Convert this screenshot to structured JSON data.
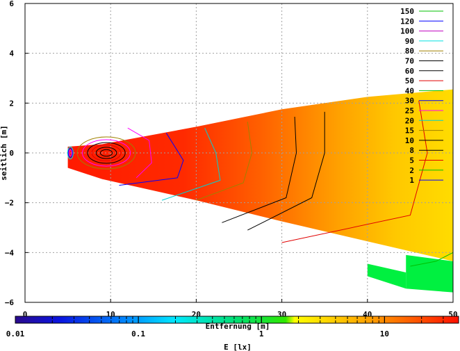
{
  "chart_data": {
    "type": "heatmap",
    "title": "",
    "xlabel": "Entfernung [m]",
    "ylabel": "seitlich [m]",
    "colorbar_label": "E [lx]",
    "xlim": [
      0,
      50
    ],
    "ylim": [
      -6,
      6
    ],
    "x_ticks": [
      0,
      10,
      20,
      30,
      40,
      50
    ],
    "y_ticks": [
      6,
      4,
      2,
      0,
      -2,
      -4,
      -6
    ],
    "grid": true,
    "colorbar": {
      "scale": "log",
      "range": [
        0.01,
        40
      ],
      "tick_labels": [
        {
          "label": "0.01",
          "value": 0.01
        },
        {
          "label": "0.1",
          "value": 0.1
        },
        {
          "label": "1",
          "value": 1
        },
        {
          "label": "10",
          "value": 10
        }
      ]
    },
    "beam_outline": {
      "upper": [
        [
          5,
          0.25
        ],
        [
          9,
          0.35
        ],
        [
          20,
          1.05
        ],
        [
          30,
          1.75
        ],
        [
          40,
          2.25
        ],
        [
          50,
          2.55
        ]
      ],
      "lower": [
        [
          50,
          -4.35
        ],
        [
          40,
          -3.55
        ],
        [
          30,
          -2.75
        ],
        [
          20,
          -1.9
        ],
        [
          9,
          -1.05
        ],
        [
          5,
          -0.6
        ]
      ]
    },
    "legend": {
      "placement": "top-right",
      "entries": [
        {
          "label": "150",
          "color": "#00c000"
        },
        {
          "label": "120",
          "color": "#0000ff"
        },
        {
          "label": "100",
          "color": "#c000c0"
        },
        {
          "label": "90",
          "color": "#00e0e0"
        },
        {
          "label": "80",
          "color": "#a08000"
        },
        {
          "label": "70",
          "color": "#000000"
        },
        {
          "label": "60",
          "color": "#000000"
        },
        {
          "label": "50",
          "color": "#e00000"
        },
        {
          "label": "40",
          "color": "#00c000"
        },
        {
          "label": "30",
          "color": "#0000ff"
        },
        {
          "label": "25",
          "color": "#ff00ff"
        },
        {
          "label": "20",
          "color": "#00d0d0"
        },
        {
          "label": "15",
          "color": "#a08000"
        },
        {
          "label": "10",
          "color": "#000000"
        },
        {
          "label": "8",
          "color": "#000000"
        },
        {
          "label": "5",
          "color": "#e00000"
        },
        {
          "label": "2",
          "color": "#00c000"
        },
        {
          "label": "1",
          "color": "#0000ff"
        }
      ]
    },
    "contours": [
      {
        "level": 25,
        "color": "#ff00ff",
        "points": [
          [
            12,
            1.0
          ],
          [
            14.5,
            0.5
          ],
          [
            14.8,
            -0.4
          ],
          [
            13,
            -1.0
          ]
        ]
      },
      {
        "level": 30,
        "color": "#0000ff",
        "points": [
          [
            16.5,
            0.8
          ],
          [
            18.5,
            -0.3
          ],
          [
            17.8,
            -1.0
          ],
          [
            11,
            -1.3
          ]
        ]
      },
      {
        "level": 20,
        "color": "#00d0d0",
        "points": [
          [
            21,
            1.0
          ],
          [
            22.3,
            0.0
          ],
          [
            22.8,
            -1.1
          ],
          [
            16,
            -1.9
          ]
        ]
      },
      {
        "level": 15,
        "color": "#a08000",
        "points": [
          [
            26,
            1.25
          ],
          [
            26.5,
            0.0
          ],
          [
            25.5,
            -1.2
          ],
          [
            20,
            -1.9
          ]
        ]
      },
      {
        "level": 10,
        "color": "#000000",
        "points": [
          [
            31.5,
            1.45
          ],
          [
            31.7,
            0.0
          ],
          [
            30.5,
            -1.8
          ],
          [
            23,
            -2.8
          ]
        ]
      },
      {
        "level": 8,
        "color": "#000000",
        "points": [
          [
            35,
            1.65
          ],
          [
            35,
            0.0
          ],
          [
            33.5,
            -1.8
          ],
          [
            26,
            -3.1
          ]
        ]
      },
      {
        "level": 5,
        "color": "#e00000",
        "points": [
          [
            46,
            2.1
          ],
          [
            47,
            0.0
          ],
          [
            45,
            -2.5
          ],
          [
            30,
            -3.6
          ]
        ]
      },
      {
        "level": 2,
        "color": "#00c000",
        "points": [
          [
            45,
            -4.55
          ],
          [
            48,
            -4.35
          ],
          [
            50,
            -4.0
          ]
        ]
      }
    ],
    "near_field_rings": [
      {
        "cx": 9.5,
        "cy": 0.0,
        "rx": [
          0.7,
          1.2,
          1.7,
          2.2,
          2.8,
          3.4
        ]
      }
    ]
  }
}
